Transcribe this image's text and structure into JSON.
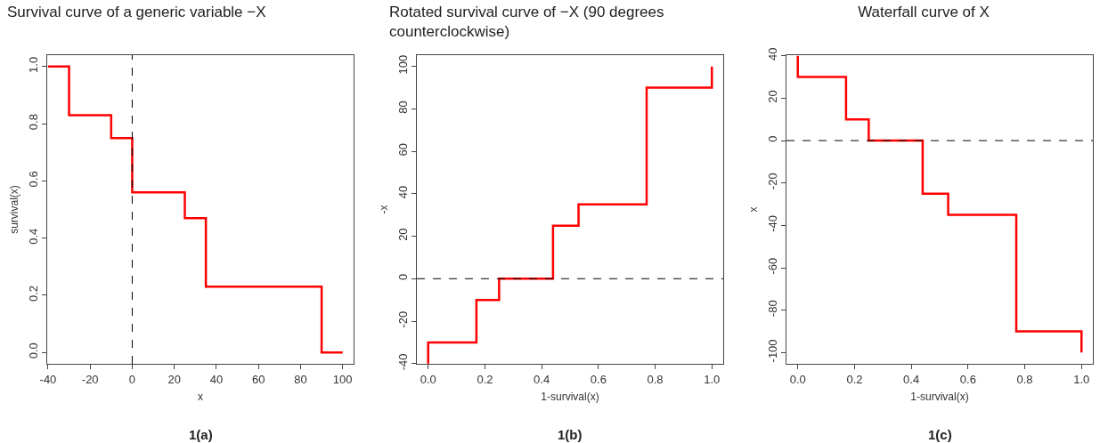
{
  "chart_data": [
    {
      "type": "step",
      "title": "Survival curve of a generic variable −X",
      "xlabel": "x",
      "ylabel": "survival(x)",
      "series": [
        {
          "color": "#ff0000",
          "x": [
            -40,
            -30,
            -10,
            0,
            25,
            35,
            90,
            100
          ],
          "values": [
            1,
            0.83,
            0.75,
            0.56,
            0.47,
            0.23,
            0,
            0
          ]
        }
      ],
      "xlim": [
        -40.4,
        105.2
      ],
      "ylim": [
        -0.04,
        1.04
      ],
      "xticks": [
        -40,
        -20,
        0,
        20,
        40,
        60,
        80,
        100
      ],
      "yticks": [
        {
          "value": 0,
          "label": "0.0"
        },
        {
          "value": 0.2,
          "label": "0.2"
        },
        {
          "value": 0.4,
          "label": "0.4"
        },
        {
          "value": 0.6,
          "label": "0.6"
        },
        {
          "value": 0.8,
          "label": "0.8"
        },
        {
          "value": 1,
          "label": "1.0"
        }
      ],
      "ref_lines": [
        {
          "axis": "x",
          "value": 0,
          "color": "#000000",
          "line_style": "dashed"
        }
      ],
      "annotations": [
        "1(a)"
      ]
    },
    {
      "type": "step",
      "title": "Rotated  survival curve of −X (90 degrees counterclockwise)",
      "xlabel": "1-survival(x)",
      "ylabel": "-x",
      "series": [
        {
          "color": "#ff0000",
          "x": [
            0,
            0,
            0.17,
            0.25,
            0.44,
            0.53,
            0.77,
            1
          ],
          "values": [
            -40,
            -30,
            -10,
            0,
            25,
            35,
            90,
            100
          ]
        }
      ],
      "xlim": [
        -0.04,
        1.04
      ],
      "ylim": [
        -40.1,
        105.3
      ],
      "xticks": [
        {
          "value": 0,
          "label": "0.0"
        },
        {
          "value": 0.2,
          "label": "0.2"
        },
        {
          "value": 0.4,
          "label": "0.4"
        },
        {
          "value": 0.6,
          "label": "0.6"
        },
        {
          "value": 0.8,
          "label": "0.8"
        },
        {
          "value": 1,
          "label": "1.0"
        }
      ],
      "yticks": [
        -40,
        -20,
        0,
        20,
        40,
        60,
        80,
        100
      ],
      "ref_lines": [
        {
          "axis": "y",
          "value": 0,
          "color": "#000000",
          "line_style": "dashed"
        }
      ],
      "annotations": [
        "1(b)"
      ]
    },
    {
      "type": "step",
      "title": "Waterfall curve of X",
      "xlabel": "1-survival(x)",
      "ylabel": "x",
      "series": [
        {
          "color": "#ff0000",
          "x": [
            0,
            0,
            0.17,
            0.25,
            0.44,
            0.53,
            0.77,
            1
          ],
          "values": [
            40,
            30,
            10,
            0,
            -25,
            -35,
            -90,
            -100
          ]
        }
      ],
      "xlim": [
        -0.04,
        1.04
      ],
      "ylim": [
        -105.3,
        40.3
      ],
      "xticks": [
        {
          "value": 0,
          "label": "0.0"
        },
        {
          "value": 0.2,
          "label": "0.2"
        },
        {
          "value": 0.4,
          "label": "0.4"
        },
        {
          "value": 0.6,
          "label": "0.6"
        },
        {
          "value": 0.8,
          "label": "0.8"
        },
        {
          "value": 1,
          "label": "1.0"
        }
      ],
      "yticks": [
        -100,
        -80,
        -60,
        -40,
        -20,
        0,
        20,
        40
      ],
      "ref_lines": [
        {
          "axis": "y",
          "value": 0,
          "color": "#000000",
          "line_style": "dashed"
        }
      ],
      "annotations": [
        "1(c)"
      ]
    }
  ]
}
